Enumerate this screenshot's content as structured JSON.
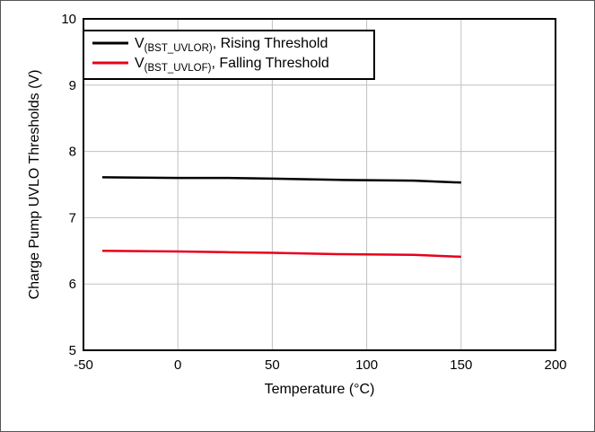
{
  "chart_data": {
    "type": "line",
    "title": "",
    "xlabel": "Temperature (°C)",
    "ylabel": "Charge Pump UVLO Thresholds (V)",
    "xlim": [
      -50,
      200
    ],
    "ylim": [
      5,
      10
    ],
    "xticks": [
      -50,
      0,
      50,
      100,
      150,
      200
    ],
    "yticks": [
      5,
      6,
      7,
      8,
      9,
      10
    ],
    "xtick_labels": [
      "-50",
      "0",
      "50",
      "100",
      "150",
      "200"
    ],
    "ytick_labels": [
      "5",
      "6",
      "7",
      "8",
      "9",
      "10"
    ],
    "grid": true,
    "legend_position": "top-left",
    "series": [
      {
        "name": "V(BST_UVLOR), Rising Threshold",
        "legend_main": "V",
        "legend_sub": "(BST_UVLOR)",
        "legend_rest": ", Rising Threshold",
        "color": "#000000",
        "x": [
          -40,
          0,
          25,
          50,
          85,
          125,
          150
        ],
        "y": [
          7.61,
          7.6,
          7.6,
          7.59,
          7.57,
          7.56,
          7.53
        ]
      },
      {
        "name": "V(BST_UVLOF), Falling Threshold",
        "legend_main": "V",
        "legend_sub": "(BST_UVLOF)",
        "legend_rest": ", Falling Threshold",
        "color": "#e8001c",
        "x": [
          -40,
          0,
          25,
          50,
          85,
          125,
          150
        ],
        "y": [
          6.5,
          6.49,
          6.48,
          6.47,
          6.45,
          6.44,
          6.41
        ]
      }
    ]
  }
}
